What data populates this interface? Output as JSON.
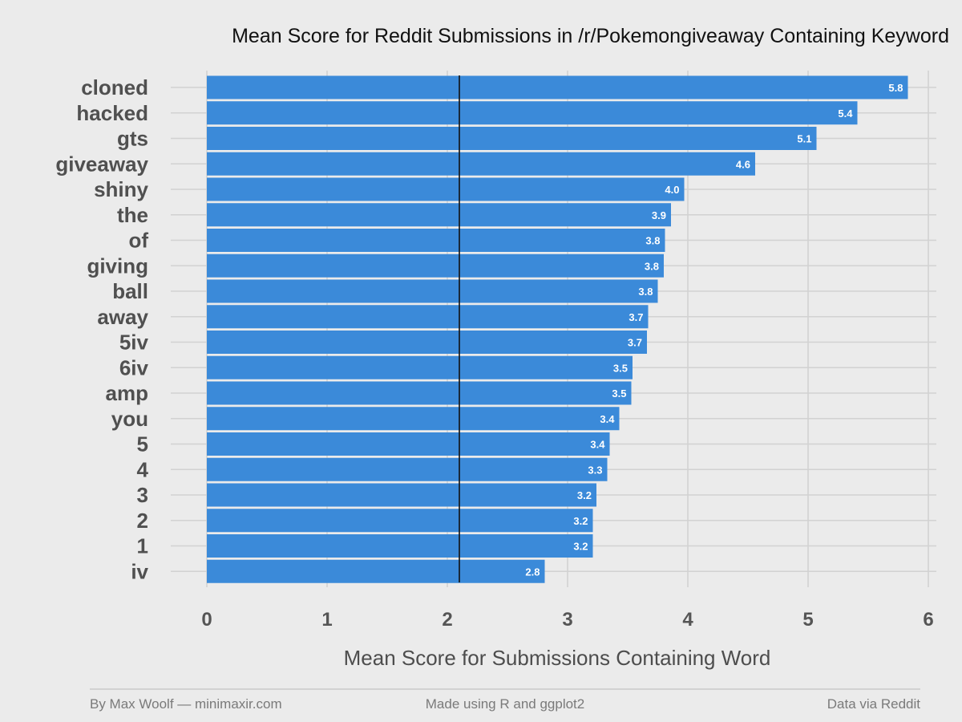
{
  "chart_data": {
    "type": "bar",
    "orientation": "horizontal",
    "title": "Mean Score for Reddit Submissions in /r/Pokemongiveaway Containing Keyword",
    "xlabel": "Mean Score for Submissions Containing Word",
    "ylabel": "",
    "categories": [
      "cloned",
      "hacked",
      "gts",
      "giveaway",
      "shiny",
      "the",
      "of",
      "giving",
      "ball",
      "away",
      "5iv",
      "6iv",
      "amp",
      "you",
      "5",
      "4",
      "3",
      "2",
      "1",
      "iv"
    ],
    "values": [
      5.83,
      5.41,
      5.07,
      4.56,
      3.97,
      3.86,
      3.81,
      3.8,
      3.75,
      3.67,
      3.66,
      3.54,
      3.53,
      3.43,
      3.35,
      3.33,
      3.24,
      3.21,
      3.21,
      2.81
    ],
    "data_labels": [
      "5.8",
      "5.4",
      "5.1",
      "4.6",
      "4.0",
      "3.9",
      "3.8",
      "3.8",
      "3.8",
      "3.7",
      "3.7",
      "3.5",
      "3.5",
      "3.4",
      "3.4",
      "3.3",
      "3.2",
      "3.2",
      "3.2",
      "2.8"
    ],
    "xlim": [
      0,
      6
    ],
    "x_ticks": [
      "0",
      "1",
      "2",
      "3",
      "4",
      "5",
      "6"
    ],
    "reference_line": 2.1,
    "grid": true,
    "bar_color": "#3b8ad9",
    "background_color": "#ebebeb",
    "grid_color": "#d2d2d2"
  },
  "footer": {
    "left": "By Max Woolf — minimaxir.com",
    "center": "Made using R and ggplot2",
    "right": "Data via Reddit"
  }
}
